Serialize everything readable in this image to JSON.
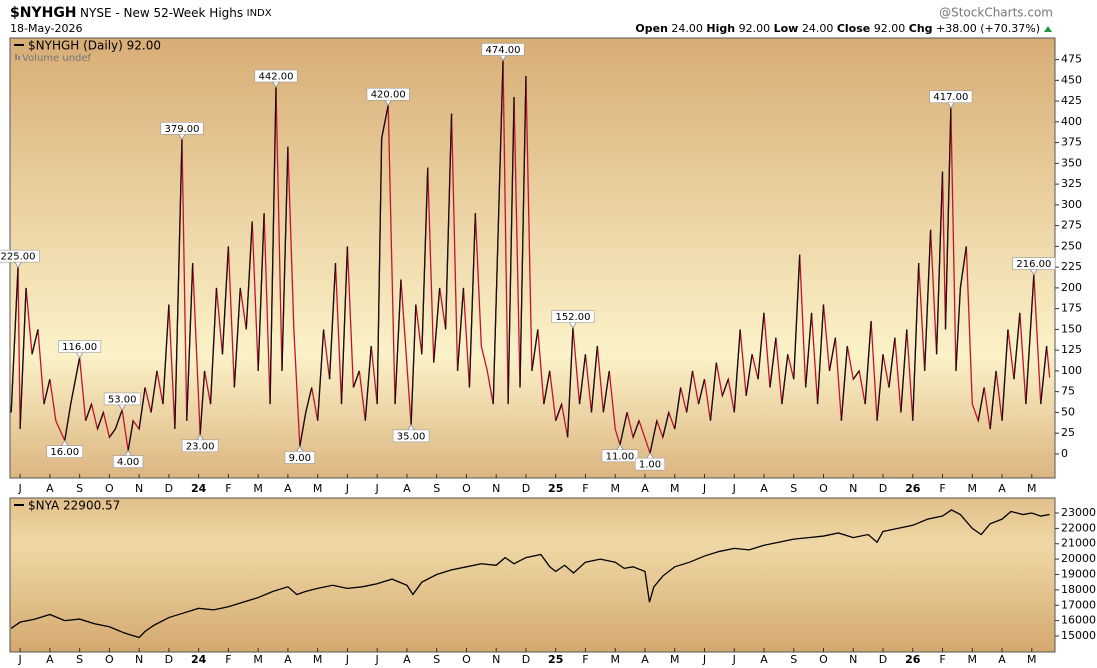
{
  "header": {
    "symbol": "$NYHGH",
    "name": "NYSE - New 52-Week Highs",
    "exchange": "INDX",
    "date": "18-May-2026",
    "source": "@StockCharts.com",
    "quote": [
      {
        "label": "Open",
        "value": "24.00"
      },
      {
        "label": "High",
        "value": "92.00"
      },
      {
        "label": "Low",
        "value": "24.00"
      },
      {
        "label": "Close",
        "value": "92.00"
      },
      {
        "label": "Chg",
        "value": "+38.00 (+70.37%)"
      }
    ]
  },
  "chart_data": [
    {
      "type": "line",
      "sublegend": "Volume undef",
      "x": [
        -0.3,
        -0.07,
        0.0,
        0.2,
        0.4,
        0.6,
        0.8,
        1.0,
        1.2,
        1.5,
        1.7,
        2.0,
        2.2,
        2.4,
        2.6,
        2.8,
        3.0,
        3.2,
        3.43,
        3.63,
        3.8,
        4.0,
        4.2,
        4.4,
        4.6,
        4.8,
        5.0,
        5.2,
        5.44,
        5.6,
        5.8,
        6.05,
        6.2,
        6.4,
        6.6,
        6.8,
        7.0,
        7.2,
        7.4,
        7.6,
        7.8,
        8.0,
        8.2,
        8.4,
        8.6,
        8.8,
        9.0,
        9.2,
        9.4,
        9.6,
        9.8,
        10.0,
        10.2,
        10.4,
        10.6,
        10.8,
        11.0,
        11.2,
        11.4,
        11.6,
        11.8,
        12.0,
        12.15,
        12.37,
        12.6,
        12.8,
        13.14,
        13.3,
        13.5,
        13.7,
        13.9,
        14.1,
        14.3,
        14.5,
        14.7,
        14.9,
        15.1,
        15.3,
        15.5,
        15.7,
        15.9,
        16.23,
        16.4,
        16.6,
        16.8,
        17.0,
        17.2,
        17.4,
        17.6,
        17.8,
        18.0,
        18.2,
        18.4,
        18.58,
        18.8,
        19.0,
        19.2,
        19.4,
        19.6,
        19.8,
        20.0,
        20.16,
        20.4,
        20.6,
        20.8,
        21.17,
        21.4,
        21.6,
        21.8,
        22.0,
        22.2,
        22.4,
        22.6,
        22.8,
        23.0,
        23.2,
        23.4,
        23.6,
        23.8,
        24.0,
        24.2,
        24.4,
        24.6,
        24.8,
        25.0,
        25.2,
        25.4,
        25.6,
        25.8,
        26.0,
        26.2,
        26.4,
        26.6,
        26.8,
        27.0,
        27.2,
        27.4,
        27.6,
        27.8,
        28.0,
        28.2,
        28.4,
        28.6,
        28.8,
        29.0,
        29.2,
        29.4,
        29.6,
        29.8,
        30.0,
        30.2,
        30.4,
        30.6,
        30.8,
        31.0,
        31.1,
        31.28,
        31.45,
        31.6,
        31.8,
        32.0,
        32.2,
        32.4,
        32.6,
        32.8,
        33.0,
        33.2,
        33.4,
        33.6,
        33.8,
        34.07,
        34.3,
        34.5,
        34.6
      ],
      "series": [
        {
          "name": "$NYHGH (Daily) 92.00",
          "color": "#000000",
          "up_color": "#111111",
          "down_color": "#c8102e",
          "values": [
            50,
            225,
            30,
            200,
            120,
            150,
            60,
            90,
            40,
            16,
            60,
            116,
            40,
            60,
            30,
            50,
            20,
            30,
            53,
            4,
            40,
            30,
            80,
            50,
            100,
            60,
            180,
            30,
            379,
            40,
            230,
            23,
            100,
            60,
            200,
            120,
            250,
            80,
            200,
            150,
            280,
            100,
            290,
            60,
            442,
            100,
            370,
            150,
            9,
            50,
            80,
            40,
            150,
            90,
            230,
            60,
            250,
            80,
            100,
            40,
            130,
            60,
            380,
            420,
            60,
            210,
            35,
            180,
            120,
            345,
            110,
            200,
            150,
            410,
            100,
            200,
            80,
            290,
            130,
            100,
            60,
            474,
            60,
            430,
            80,
            455,
            100,
            150,
            60,
            100,
            40,
            60,
            20,
            152,
            60,
            120,
            50,
            130,
            50,
            100,
            30,
            11,
            50,
            20,
            40,
            1,
            40,
            20,
            50,
            30,
            80,
            50,
            100,
            60,
            90,
            40,
            110,
            70,
            90,
            50,
            150,
            70,
            120,
            90,
            170,
            80,
            140,
            60,
            120,
            90,
            240,
            80,
            170,
            60,
            180,
            100,
            140,
            40,
            130,
            90,
            100,
            60,
            160,
            40,
            120,
            80,
            140,
            50,
            150,
            40,
            230,
            100,
            270,
            120,
            340,
            150,
            417,
            100,
            200,
            250,
            60,
            40,
            80,
            30,
            100,
            40,
            150,
            90,
            170,
            60,
            216,
            60,
            130,
            92
          ]
        }
      ],
      "annotations": [
        {
          "x": -0.07,
          "value": 225,
          "label": "225.00"
        },
        {
          "x": 1.5,
          "value": 16,
          "label": "16.00"
        },
        {
          "x": 2.0,
          "value": 116,
          "label": "116.00"
        },
        {
          "x": 3.43,
          "value": 53,
          "label": "53.00"
        },
        {
          "x": 3.63,
          "value": 4,
          "label": "4.00"
        },
        {
          "x": 5.44,
          "value": 379,
          "label": "379.00"
        },
        {
          "x": 6.05,
          "value": 23,
          "label": "23.00"
        },
        {
          "x": 8.6,
          "value": 442,
          "label": "442.00"
        },
        {
          "x": 9.4,
          "value": 9,
          "label": "9.00"
        },
        {
          "x": 12.37,
          "value": 420,
          "label": "420.00"
        },
        {
          "x": 13.14,
          "value": 35,
          "label": "35.00"
        },
        {
          "x": 16.23,
          "value": 474,
          "label": "474.00"
        },
        {
          "x": 18.58,
          "value": 152,
          "label": "152.00"
        },
        {
          "x": 20.16,
          "value": 11,
          "label": "11.00"
        },
        {
          "x": 21.17,
          "value": 1,
          "label": "1.00"
        },
        {
          "x": 31.28,
          "value": 417,
          "label": "417.00"
        },
        {
          "x": 34.07,
          "value": 216,
          "label": "216.00"
        }
      ],
      "xlim": [
        -0.34,
        34.78
      ],
      "ylim": [
        -29,
        501
      ],
      "yticks": [
        0,
        25,
        50,
        75,
        100,
        125,
        150,
        175,
        200,
        225,
        250,
        275,
        300,
        325,
        350,
        375,
        400,
        425,
        450,
        475
      ],
      "xticks": [
        {
          "value": 0,
          "label": "J"
        },
        {
          "value": 1,
          "label": "A"
        },
        {
          "value": 2,
          "label": "S"
        },
        {
          "value": 3,
          "label": "O"
        },
        {
          "value": 4,
          "label": "N"
        },
        {
          "value": 5,
          "label": "D"
        },
        {
          "value": 6,
          "label": "24"
        },
        {
          "value": 7,
          "label": "F"
        },
        {
          "value": 8,
          "label": "M"
        },
        {
          "value": 9,
          "label": "A"
        },
        {
          "value": 10,
          "label": "M"
        },
        {
          "value": 11,
          "label": "J"
        },
        {
          "value": 12,
          "label": "J"
        },
        {
          "value": 13,
          "label": "A"
        },
        {
          "value": 14,
          "label": "S"
        },
        {
          "value": 15,
          "label": "O"
        },
        {
          "value": 16,
          "label": "N"
        },
        {
          "value": 17,
          "label": "D"
        },
        {
          "value": 18,
          "label": "25"
        },
        {
          "value": 19,
          "label": "F"
        },
        {
          "value": 20,
          "label": "M"
        },
        {
          "value": 21,
          "label": "A"
        },
        {
          "value": 22,
          "label": "M"
        },
        {
          "value": 23,
          "label": "J"
        },
        {
          "value": 24,
          "label": "J"
        },
        {
          "value": 25,
          "label": "A"
        },
        {
          "value": 26,
          "label": "S"
        },
        {
          "value": 27,
          "label": "O"
        },
        {
          "value": 28,
          "label": "N"
        },
        {
          "value": 29,
          "label": "D"
        },
        {
          "value": 30,
          "label": "26"
        },
        {
          "value": 31,
          "label": "F"
        },
        {
          "value": 32,
          "label": "M"
        },
        {
          "value": 33,
          "label": "A"
        },
        {
          "value": 34,
          "label": "M"
        }
      ]
    },
    {
      "type": "line",
      "x": [
        -0.3,
        0,
        0.5,
        1.0,
        1.5,
        2.0,
        2.5,
        3.0,
        3.5,
        4.0,
        4.2,
        4.5,
        5.0,
        5.5,
        6.0,
        6.5,
        7.0,
        7.5,
        8.0,
        8.5,
        9.0,
        9.3,
        9.6,
        10.0,
        10.5,
        11.0,
        11.5,
        12.0,
        12.5,
        13.0,
        13.2,
        13.5,
        14.0,
        14.5,
        15.0,
        15.5,
        16.0,
        16.3,
        16.6,
        17.0,
        17.5,
        17.8,
        18.0,
        18.3,
        18.6,
        19.0,
        19.5,
        20.0,
        20.3,
        20.6,
        21.0,
        21.15,
        21.3,
        21.6,
        22.0,
        22.5,
        23.0,
        23.5,
        24.0,
        24.5,
        25.0,
        25.5,
        26.0,
        26.5,
        27.0,
        27.5,
        28.0,
        28.5,
        28.8,
        29.0,
        29.5,
        30.0,
        30.5,
        31.0,
        31.3,
        31.6,
        32.0,
        32.3,
        32.6,
        33.0,
        33.3,
        33.7,
        34.0,
        34.3,
        34.6
      ],
      "series": [
        {
          "name": "$NYA 22900.57",
          "color": "#000000",
          "values": [
            15500,
            15900,
            16100,
            16400,
            16000,
            16100,
            15800,
            15600,
            15200,
            14900,
            15300,
            15700,
            16200,
            16500,
            16800,
            16700,
            16900,
            17200,
            17500,
            17900,
            18200,
            17700,
            17900,
            18100,
            18300,
            18100,
            18200,
            18400,
            18700,
            18300,
            17700,
            18500,
            19000,
            19300,
            19500,
            19700,
            19600,
            20100,
            19700,
            20100,
            20300,
            19500,
            19200,
            19600,
            19100,
            19800,
            20000,
            19800,
            19400,
            19500,
            19200,
            17200,
            18200,
            18900,
            19500,
            19800,
            20200,
            20500,
            20700,
            20600,
            20900,
            21100,
            21300,
            21400,
            21500,
            21700,
            21400,
            21600,
            21100,
            21800,
            22000,
            22200,
            22600,
            22800,
            23200,
            22900,
            22000,
            21600,
            22300,
            22600,
            23100,
            22900,
            23000,
            22800,
            22900
          ]
        }
      ],
      "xlim": [
        -0.34,
        34.78
      ],
      "ylim": [
        13960,
        23975
      ],
      "yticks": [
        15000,
        16000,
        17000,
        18000,
        19000,
        20000,
        21000,
        22000,
        23000
      ],
      "xticks": [
        {
          "value": 0,
          "label": "J"
        },
        {
          "value": 1,
          "label": "A"
        },
        {
          "value": 2,
          "label": "S"
        },
        {
          "value": 3,
          "label": "O"
        },
        {
          "value": 4,
          "label": "N"
        },
        {
          "value": 5,
          "label": "D"
        },
        {
          "value": 6,
          "label": "24"
        },
        {
          "value": 7,
          "label": "F"
        },
        {
          "value": 8,
          "label": "M"
        },
        {
          "value": 9,
          "label": "A"
        },
        {
          "value": 10,
          "label": "M"
        },
        {
          "value": 11,
          "label": "J"
        },
        {
          "value": 12,
          "label": "J"
        },
        {
          "value": 13,
          "label": "A"
        },
        {
          "value": 14,
          "label": "S"
        },
        {
          "value": 15,
          "label": "O"
        },
        {
          "value": 16,
          "label": "N"
        },
        {
          "value": 17,
          "label": "D"
        },
        {
          "value": 18,
          "label": "25"
        },
        {
          "value": 19,
          "label": "F"
        },
        {
          "value": 20,
          "label": "M"
        },
        {
          "value": 21,
          "label": "A"
        },
        {
          "value": 22,
          "label": "M"
        },
        {
          "value": 23,
          "label": "J"
        },
        {
          "value": 24,
          "label": "J"
        },
        {
          "value": 25,
          "label": "A"
        },
        {
          "value": 26,
          "label": "S"
        },
        {
          "value": 27,
          "label": "O"
        },
        {
          "value": 28,
          "label": "N"
        },
        {
          "value": 29,
          "label": "D"
        },
        {
          "value": 30,
          "label": "26"
        },
        {
          "value": 31,
          "label": "F"
        },
        {
          "value": 32,
          "label": "M"
        },
        {
          "value": 33,
          "label": "A"
        },
        {
          "value": 34,
          "label": "M"
        }
      ]
    }
  ]
}
